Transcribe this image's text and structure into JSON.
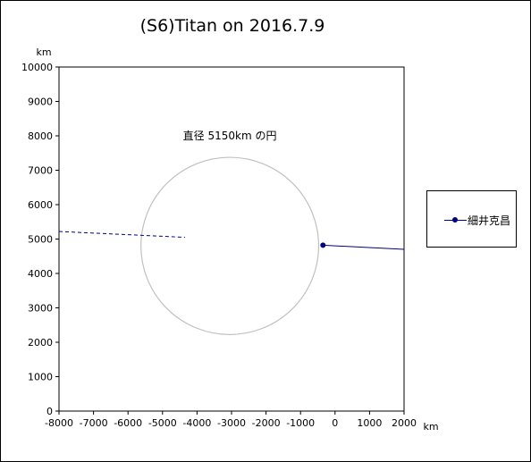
{
  "chart_data": {
    "type": "line",
    "title": "(S6)Titan on 2016.7.9",
    "xlabel": "km",
    "ylabel": "km",
    "xlim": [
      -8000,
      2000
    ],
    "ylim": [
      0,
      10000
    ],
    "xticks": [
      -8000,
      -7000,
      -6000,
      -5000,
      -4000,
      -3000,
      -2000,
      -1000,
      0,
      1000,
      2000
    ],
    "yticks": [
      0,
      1000,
      2000,
      3000,
      4000,
      5000,
      6000,
      7000,
      8000,
      9000,
      10000
    ],
    "grid": false,
    "legend_position": "right",
    "circle": {
      "center_x": -3050,
      "center_y": 4800,
      "diameter": 5150,
      "label": "直径 5150km の円"
    },
    "series": [
      {
        "name": "細井克昌",
        "color": "#000080",
        "marker_point": {
          "x": -350,
          "y": 4820
        },
        "solid_line": [
          {
            "x": -350,
            "y": 4820
          },
          {
            "x": 2000,
            "y": 4700
          }
        ],
        "dashed_line": [
          {
            "x": -8000,
            "y": 5220
          },
          {
            "x": -4350,
            "y": 5050
          }
        ]
      }
    ]
  }
}
